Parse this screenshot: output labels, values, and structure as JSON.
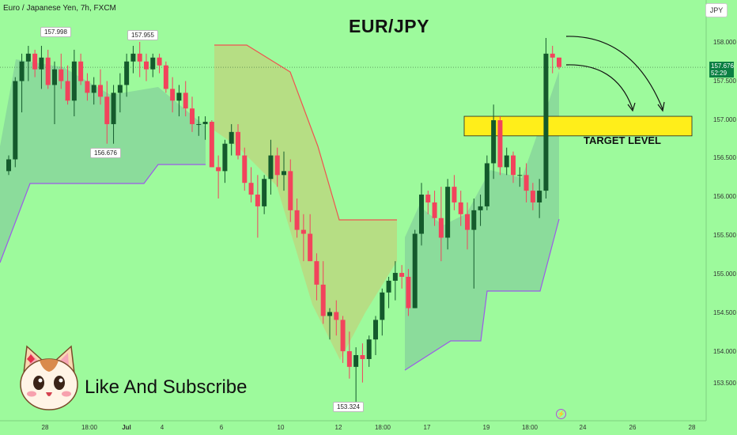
{
  "header": {
    "instrument": "Euro / Japanese Yen, 7h, FXCM",
    "currency_button": "JPY"
  },
  "annotations": {
    "title": "EUR/JPY",
    "target_label": "TARGET LEVEL",
    "promo_text": "Like And Subscribe"
  },
  "colors": {
    "background": "#9dfa9c",
    "bull_candle": "#145a2c",
    "bear_candle": "#f2435c",
    "target_zone": "#ffee1a",
    "trail_upper": "#ef5350",
    "trail_lower": "#9c5ae8"
  },
  "chart_data": {
    "type": "candlestick",
    "title": "EUR/JPY",
    "ylim": [
      153.1,
      158.3
    ],
    "y_ticks": [
      "158.000",
      "157.500",
      "157.000",
      "156.500",
      "156.000",
      "155.500",
      "155.000",
      "154.500",
      "154.000",
      "153.500"
    ],
    "x_ticks": [
      "28",
      "18:00",
      "Jul",
      "4",
      "6",
      "10",
      "12",
      "18:00",
      "17",
      "19",
      "18:00",
      "24",
      "26",
      "28"
    ],
    "current_price": "157.676",
    "countdown": "52:29",
    "price_labels": [
      "157.998",
      "157.955",
      "156.676",
      "153.324"
    ],
    "target_zone": {
      "from": 156.8,
      "to": 157.05,
      "label": "TARGET LEVEL"
    },
    "candles": [
      [
        156.35,
        156.55,
        156.3,
        156.5
      ],
      [
        156.5,
        157.55,
        156.4,
        157.5
      ],
      [
        157.5,
        157.85,
        157.1,
        157.75
      ],
      [
        157.75,
        157.95,
        157.5,
        157.85
      ],
      [
        157.85,
        157.9,
        157.55,
        157.65
      ],
      [
        157.65,
        157.95,
        157.4,
        157.8
      ],
      [
        157.8,
        157.9,
        157.4,
        157.45
      ],
      [
        157.45,
        157.75,
        156.95,
        157.65
      ],
      [
        157.65,
        157.85,
        157.4,
        157.5
      ],
      [
        157.5,
        157.7,
        157.2,
        157.25
      ],
      [
        157.25,
        157.9,
        157.05,
        157.75
      ],
      [
        157.75,
        157.85,
        157.45,
        157.5
      ],
      [
        157.5,
        157.6,
        157.25,
        157.35
      ],
      [
        157.35,
        157.55,
        157.2,
        157.45
      ],
      [
        157.45,
        157.65,
        157.2,
        157.3
      ],
      [
        157.3,
        157.5,
        156.7,
        156.95
      ],
      [
        156.95,
        157.45,
        156.7,
        157.35
      ],
      [
        157.35,
        157.6,
        157.1,
        157.45
      ],
      [
        157.45,
        157.85,
        157.3,
        157.75
      ],
      [
        157.75,
        157.95,
        157.6,
        157.85
      ],
      [
        157.85,
        158.0,
        157.55,
        157.75
      ],
      [
        157.75,
        157.85,
        157.5,
        157.65
      ],
      [
        157.65,
        157.85,
        157.55,
        157.8
      ],
      [
        157.8,
        157.85,
        157.6,
        157.7
      ],
      [
        157.7,
        157.75,
        157.35,
        157.4
      ],
      [
        157.4,
        157.55,
        157.1,
        157.25
      ],
      [
        157.25,
        157.45,
        157.05,
        157.35
      ],
      [
        157.35,
        157.5,
        157.05,
        157.15
      ],
      [
        157.15,
        157.3,
        156.85,
        156.95
      ],
      [
        156.95,
        157.05,
        156.8,
        156.95
      ],
      [
        156.95,
        157.05,
        156.75,
        156.98
      ],
      [
        156.98,
        157.0,
        156.4,
        156.4
      ],
      [
        156.4,
        156.55,
        156.0,
        156.35
      ],
      [
        156.35,
        156.75,
        156.2,
        156.7
      ],
      [
        156.7,
        156.95,
        156.55,
        156.85
      ],
      [
        156.85,
        156.95,
        156.5,
        156.55
      ],
      [
        156.55,
        156.65,
        156.1,
        156.2
      ],
      [
        156.2,
        156.4,
        155.95,
        156.05
      ],
      [
        156.05,
        156.3,
        155.5,
        155.9
      ],
      [
        155.9,
        156.3,
        155.8,
        156.25
      ],
      [
        156.25,
        156.75,
        156.05,
        156.55
      ],
      [
        156.55,
        156.65,
        156.15,
        156.3
      ],
      [
        156.3,
        156.6,
        156.1,
        156.35
      ],
      [
        156.35,
        156.5,
        155.7,
        155.85
      ],
      [
        155.85,
        156.0,
        155.5,
        155.6
      ],
      [
        155.6,
        155.8,
        155.2,
        155.55
      ],
      [
        155.55,
        155.8,
        155.2,
        155.2
      ],
      [
        155.2,
        155.3,
        154.7,
        154.9
      ],
      [
        154.9,
        155.2,
        154.4,
        154.5
      ],
      [
        154.5,
        154.6,
        154.2,
        154.55
      ],
      [
        154.55,
        154.7,
        154.25,
        154.45
      ],
      [
        154.45,
        154.5,
        153.9,
        154.05
      ],
      [
        154.05,
        154.3,
        153.7,
        153.85
      ],
      [
        153.85,
        154.1,
        153.3,
        154.0
      ],
      [
        154.0,
        154.15,
        153.65,
        153.95
      ],
      [
        153.95,
        154.25,
        153.85,
        154.2
      ],
      [
        154.2,
        154.5,
        154.0,
        154.45
      ],
      [
        154.45,
        154.85,
        154.25,
        154.8
      ],
      [
        154.8,
        155.0,
        154.6,
        154.95
      ],
      [
        154.95,
        155.2,
        154.7,
        155.05
      ],
      [
        155.05,
        155.15,
        154.85,
        155.0
      ],
      [
        155.0,
        155.1,
        154.5,
        154.6
      ],
      [
        154.6,
        155.6,
        154.6,
        155.55
      ],
      [
        155.55,
        156.2,
        155.4,
        156.05
      ],
      [
        156.05,
        156.1,
        155.8,
        155.95
      ],
      [
        155.95,
        156.1,
        155.65,
        155.75
      ],
      [
        155.75,
        156.15,
        155.2,
        155.5
      ],
      [
        155.5,
        156.25,
        155.35,
        156.15
      ],
      [
        156.15,
        156.3,
        155.85,
        155.95
      ],
      [
        155.95,
        156.1,
        155.65,
        155.8
      ],
      [
        155.8,
        155.95,
        155.35,
        155.6
      ],
      [
        155.6,
        156.0,
        154.85,
        155.85
      ],
      [
        155.85,
        156.05,
        155.65,
        155.9
      ],
      [
        155.9,
        156.55,
        155.85,
        156.45
      ],
      [
        156.45,
        157.2,
        156.25,
        157.0
      ],
      [
        157.0,
        157.05,
        156.3,
        156.4
      ],
      [
        156.4,
        156.65,
        156.3,
        156.55
      ],
      [
        156.55,
        156.6,
        156.2,
        156.3
      ],
      [
        156.3,
        156.4,
        156.15,
        156.3
      ],
      [
        156.3,
        156.45,
        155.95,
        156.1
      ],
      [
        156.1,
        156.2,
        155.85,
        155.95
      ],
      [
        155.95,
        156.25,
        155.75,
        156.1
      ],
      [
        156.1,
        158.05,
        156.0,
        157.85
      ],
      [
        157.85,
        157.95,
        157.6,
        157.8
      ],
      [
        157.8,
        157.8,
        157.65,
        157.68
      ]
    ]
  }
}
